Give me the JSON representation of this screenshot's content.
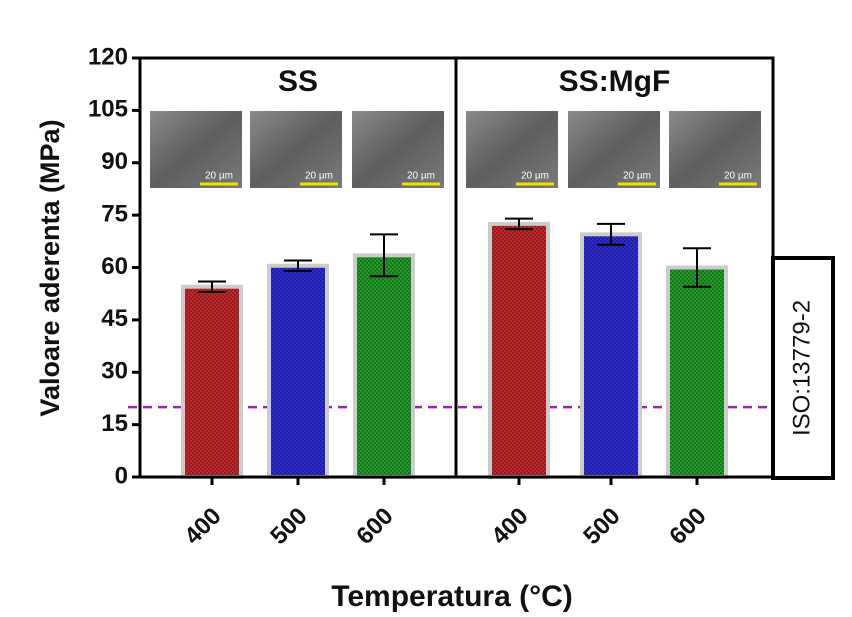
{
  "chart_data": {
    "type": "bar",
    "ylabel": "Valoare aderenta (MPa)",
    "xlabel": "Temperatura (°C)",
    "ylim": [
      0,
      120
    ],
    "yticks": [
      0,
      15,
      30,
      45,
      60,
      75,
      90,
      105,
      120
    ],
    "colors": [
      "#c0282c",
      "#2b2bd0",
      "#229a2a"
    ],
    "threshold": 20,
    "threshold_color": "#a020b0",
    "annotation": "ISO:13779-2",
    "panels": [
      {
        "title": "SS",
        "categories": [
          "400",
          "500",
          "600"
        ],
        "values": [
          54.5,
          60.5,
          63.5
        ],
        "errors": [
          1.5,
          1.5,
          6
        ],
        "image_labels": [
          "20 µm",
          "20 µm",
          "20 µm"
        ]
      },
      {
        "title": "SS:MgF",
        "categories": [
          "400",
          "500",
          "600"
        ],
        "values": [
          72.5,
          69.5,
          60
        ],
        "errors": [
          1.5,
          3,
          5.5
        ],
        "image_labels": [
          "20 µm",
          "20 µm",
          "20 µm"
        ]
      }
    ]
  }
}
